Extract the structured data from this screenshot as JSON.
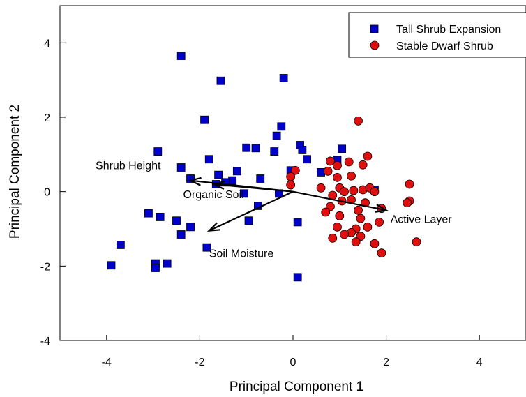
{
  "chart_data": {
    "type": "scatter",
    "xlabel": "Principal Component 1",
    "ylabel": "Principal Component 2",
    "xlim": [
      -5,
      5
    ],
    "ylim": [
      -4,
      5
    ],
    "xticks": [
      -4,
      -2,
      0,
      2,
      4
    ],
    "yticks": [
      -4,
      -2,
      0,
      2,
      4
    ],
    "grid": false,
    "legend_position": "top-right",
    "series": [
      {
        "name": "Tall Shrub Expansion",
        "marker": "square",
        "color": "#0000CC",
        "points": [
          [
            -2.4,
            3.65
          ],
          [
            -1.55,
            2.98
          ],
          [
            -0.2,
            3.05
          ],
          [
            -1.9,
            1.93
          ],
          [
            -2.9,
            1.08
          ],
          [
            -1.8,
            0.87
          ],
          [
            -2.4,
            0.65
          ],
          [
            -2.2,
            0.35
          ],
          [
            -1.6,
            0.45
          ],
          [
            -1.3,
            0.3
          ],
          [
            -1.2,
            0.55
          ],
          [
            -1.0,
            1.18
          ],
          [
            -0.8,
            1.17
          ],
          [
            -0.4,
            1.08
          ],
          [
            -0.35,
            1.5
          ],
          [
            -0.25,
            1.75
          ],
          [
            -0.05,
            0.57
          ],
          [
            0.15,
            1.25
          ],
          [
            0.2,
            1.12
          ],
          [
            0.3,
            0.87
          ],
          [
            -0.7,
            0.35
          ],
          [
            -1.65,
            0.2
          ],
          [
            -1.45,
            0.25
          ],
          [
            -1.05,
            -0.05
          ],
          [
            -0.3,
            -0.05
          ],
          [
            -0.75,
            -0.38
          ],
          [
            -0.95,
            -0.78
          ],
          [
            -3.1,
            -0.58
          ],
          [
            -2.85,
            -0.68
          ],
          [
            -2.5,
            -0.78
          ],
          [
            -2.2,
            -0.95
          ],
          [
            -2.4,
            -1.15
          ],
          [
            -1.85,
            -1.5
          ],
          [
            -3.7,
            -1.43
          ],
          [
            -3.9,
            -1.98
          ],
          [
            -2.95,
            -1.93
          ],
          [
            -2.95,
            -2.05
          ],
          [
            -2.7,
            -1.93
          ],
          [
            0.1,
            -0.82
          ],
          [
            0.1,
            -2.3
          ],
          [
            0.95,
            0.85
          ],
          [
            1.05,
            1.15
          ],
          [
            0.6,
            0.52
          ],
          [
            1.75,
            0.05
          ]
        ]
      },
      {
        "name": "Stable Dwarf Shrub",
        "marker": "circle",
        "color": "#E01010",
        "points": [
          [
            1.4,
            1.9
          ],
          [
            1.6,
            0.95
          ],
          [
            1.5,
            0.72
          ],
          [
            0.95,
            0.7
          ],
          [
            1.2,
            0.8
          ],
          [
            0.8,
            0.82
          ],
          [
            0.75,
            0.55
          ],
          [
            0.05,
            0.57
          ],
          [
            -0.05,
            0.4
          ],
          [
            -0.05,
            0.18
          ],
          [
            0.95,
            0.38
          ],
          [
            1.25,
            0.42
          ],
          [
            0.6,
            0.1
          ],
          [
            1.0,
            0.1
          ],
          [
            1.1,
            0.0
          ],
          [
            1.3,
            0.03
          ],
          [
            1.5,
            0.05
          ],
          [
            1.65,
            0.1
          ],
          [
            1.75,
            0.0
          ],
          [
            2.5,
            0.2
          ],
          [
            0.85,
            -0.1
          ],
          [
            1.05,
            -0.25
          ],
          [
            1.25,
            -0.22
          ],
          [
            1.55,
            -0.3
          ],
          [
            1.9,
            -0.45
          ],
          [
            2.5,
            -0.25
          ],
          [
            2.45,
            -0.3
          ],
          [
            0.8,
            -0.4
          ],
          [
            0.7,
            -0.55
          ],
          [
            1.4,
            -0.5
          ],
          [
            1.45,
            -0.72
          ],
          [
            1.85,
            -0.82
          ],
          [
            1.6,
            -0.95
          ],
          [
            1.35,
            -1.0
          ],
          [
            1.25,
            -1.1
          ],
          [
            1.1,
            -1.15
          ],
          [
            0.95,
            -0.95
          ],
          [
            1.45,
            -1.2
          ],
          [
            1.35,
            -1.35
          ],
          [
            1.75,
            -1.4
          ],
          [
            1.9,
            -1.65
          ],
          [
            2.65,
            -1.35
          ],
          [
            0.85,
            -1.25
          ],
          [
            1.0,
            -0.65
          ]
        ]
      }
    ],
    "vectors": [
      {
        "label": "Shrub Height",
        "x": -2.2,
        "y": 0.3
      },
      {
        "label": "Organic Soil",
        "x": -1.7,
        "y": 0.2
      },
      {
        "label": "Soil Moisture",
        "x": -1.8,
        "y": -1.05
      },
      {
        "label": "Active Layer",
        "x": 2.0,
        "y": -0.5
      }
    ]
  }
}
